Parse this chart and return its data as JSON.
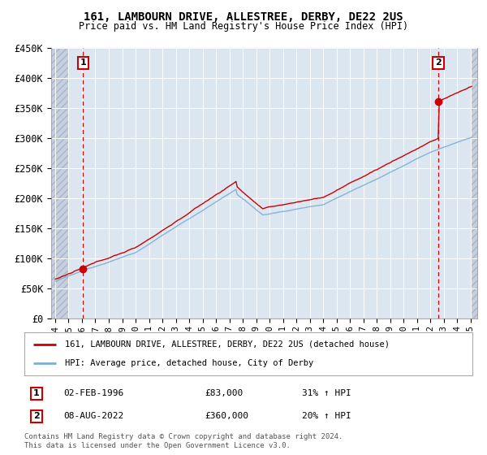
{
  "title1": "161, LAMBOURN DRIVE, ALLESTREE, DERBY, DE22 2US",
  "title2": "Price paid vs. HM Land Registry's House Price Index (HPI)",
  "ylim": [
    0,
    450000
  ],
  "yticks": [
    0,
    50000,
    100000,
    150000,
    200000,
    250000,
    300000,
    350000,
    400000,
    450000
  ],
  "ytick_labels": [
    "£0",
    "£50K",
    "£100K",
    "£150K",
    "£200K",
    "£250K",
    "£300K",
    "£350K",
    "£400K",
    "£450K"
  ],
  "xlim_start": 1993.7,
  "xlim_end": 2025.5,
  "xticks": [
    1994,
    1995,
    1996,
    1997,
    1998,
    1999,
    2000,
    2001,
    2002,
    2003,
    2004,
    2005,
    2006,
    2007,
    2008,
    2009,
    2010,
    2011,
    2012,
    2013,
    2014,
    2015,
    2016,
    2017,
    2018,
    2019,
    2020,
    2021,
    2022,
    2023,
    2024,
    2025
  ],
  "plot_bg": "#dce6f1",
  "hatch_bg": "#c5cfe0",
  "grid_color": "#ffffff",
  "red_color": "#cc0000",
  "blue_color": "#7bafd4",
  "sale1_x": 1996.09,
  "sale1_y": 83000,
  "sale1_label": "1",
  "sale1_note": "02-FEB-1996",
  "sale1_price": "£83,000",
  "sale1_hpi": "31% ↑ HPI",
  "sale2_x": 2022.6,
  "sale2_y": 360000,
  "sale2_label": "2",
  "sale2_note": "08-AUG-2022",
  "sale2_price": "£360,000",
  "sale2_hpi": "20% ↑ HPI",
  "legend_line1": "161, LAMBOURN DRIVE, ALLESTREE, DERBY, DE22 2US (detached house)",
  "legend_line2": "HPI: Average price, detached house, City of Derby",
  "footer": "Contains HM Land Registry data © Crown copyright and database right 2024.\nThis data is licensed under the Open Government Licence v3.0."
}
